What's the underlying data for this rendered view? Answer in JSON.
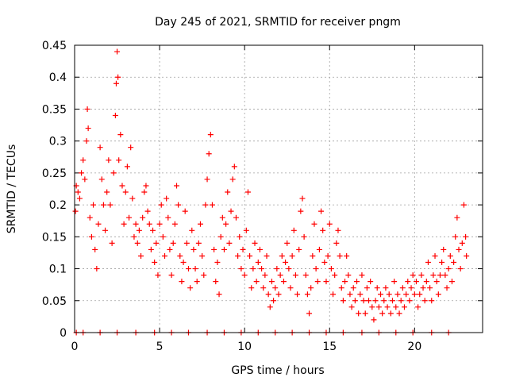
{
  "chart_data": {
    "type": "scatter",
    "title": "Day 245 of 2021, SRMTID for receiver pngm",
    "xlabel": "GPS time / hours",
    "ylabel": "SRMTID / TECUs",
    "xlim": [
      0,
      24
    ],
    "ylim": [
      0,
      0.45
    ],
    "x_ticks": [
      0,
      5,
      10,
      15,
      20
    ],
    "x_tick_labels": [
      "0",
      "5",
      "10",
      "15",
      "20"
    ],
    "y_ticks": [
      0,
      0.05,
      0.1,
      0.15,
      0.2,
      0.25,
      0.3,
      0.35,
      0.4,
      0.45
    ],
    "y_tick_labels": [
      "0",
      "0.05",
      "0.1",
      "0.15",
      "0.2",
      "0.25",
      "0.3",
      "0.35",
      "0.4",
      "0.45"
    ],
    "grid": true,
    "marker": "+",
    "color": "#ff0000",
    "series": [
      {
        "name": "SRMTID",
        "points": [
          [
            0.05,
            0.19
          ],
          [
            0.1,
            0.23
          ],
          [
            0.2,
            0.22
          ],
          [
            0.3,
            0.21
          ],
          [
            0.4,
            0.25
          ],
          [
            0.5,
            0.27
          ],
          [
            0.6,
            0.24
          ],
          [
            0.7,
            0.3
          ],
          [
            0.75,
            0.35
          ],
          [
            0.8,
            0.32
          ],
          [
            0.9,
            0.18
          ],
          [
            1.0,
            0.15
          ],
          [
            1.1,
            0.2
          ],
          [
            1.2,
            0.13
          ],
          [
            1.3,
            0.1
          ],
          [
            1.4,
            0.17
          ],
          [
            1.5,
            0.29
          ],
          [
            1.6,
            0.24
          ],
          [
            1.7,
            0.2
          ],
          [
            1.8,
            0.16
          ],
          [
            1.9,
            0.22
          ],
          [
            2.0,
            0.27
          ],
          [
            2.1,
            0.2
          ],
          [
            2.2,
            0.14
          ],
          [
            2.3,
            0.25
          ],
          [
            2.4,
            0.34
          ],
          [
            2.45,
            0.39
          ],
          [
            2.5,
            0.44
          ],
          [
            2.55,
            0.4
          ],
          [
            2.6,
            0.27
          ],
          [
            2.7,
            0.31
          ],
          [
            2.8,
            0.23
          ],
          [
            2.9,
            0.17
          ],
          [
            3.0,
            0.22
          ],
          [
            3.1,
            0.26
          ],
          [
            3.2,
            0.18
          ],
          [
            3.3,
            0.29
          ],
          [
            3.4,
            0.21
          ],
          [
            3.5,
            0.15
          ],
          [
            3.6,
            0.17
          ],
          [
            3.7,
            0.14
          ],
          [
            3.8,
            0.16
          ],
          [
            3.9,
            0.12
          ],
          [
            4.0,
            0.18
          ],
          [
            4.1,
            0.22
          ],
          [
            4.2,
            0.23
          ],
          [
            4.3,
            0.19
          ],
          [
            4.4,
            0.17
          ],
          [
            4.5,
            0.13
          ],
          [
            4.6,
            0.16
          ],
          [
            4.7,
            0.11
          ],
          [
            4.8,
            0.14
          ],
          [
            4.9,
            0.09
          ],
          [
            5.0,
            0.17
          ],
          [
            5.1,
            0.2
          ],
          [
            5.2,
            0.15
          ],
          [
            5.3,
            0.12
          ],
          [
            5.4,
            0.21
          ],
          [
            5.5,
            0.18
          ],
          [
            5.6,
            0.13
          ],
          [
            5.7,
            0.09
          ],
          [
            5.8,
            0.14
          ],
          [
            5.9,
            0.17
          ],
          [
            6.0,
            0.23
          ],
          [
            6.1,
            0.2
          ],
          [
            6.2,
            0.12
          ],
          [
            6.3,
            0.08
          ],
          [
            6.4,
            0.11
          ],
          [
            6.5,
            0.19
          ],
          [
            6.6,
            0.14
          ],
          [
            6.7,
            0.1
          ],
          [
            6.8,
            0.07
          ],
          [
            6.9,
            0.16
          ],
          [
            7.0,
            0.13
          ],
          [
            7.1,
            0.1
          ],
          [
            7.2,
            0.08
          ],
          [
            7.3,
            0.14
          ],
          [
            7.4,
            0.17
          ],
          [
            7.5,
            0.12
          ],
          [
            7.6,
            0.09
          ],
          [
            7.7,
            0.2
          ],
          [
            7.8,
            0.24
          ],
          [
            7.9,
            0.28
          ],
          [
            8.0,
            0.31
          ],
          [
            8.1,
            0.2
          ],
          [
            8.2,
            0.13
          ],
          [
            8.3,
            0.08
          ],
          [
            8.4,
            0.11
          ],
          [
            8.5,
            0.06
          ],
          [
            8.6,
            0.15
          ],
          [
            8.7,
            0.18
          ],
          [
            8.8,
            0.13
          ],
          [
            8.9,
            0.17
          ],
          [
            9.0,
            0.22
          ],
          [
            9.1,
            0.14
          ],
          [
            9.2,
            0.19
          ],
          [
            9.3,
            0.24
          ],
          [
            9.4,
            0.26
          ],
          [
            9.5,
            0.18
          ],
          [
            9.6,
            0.12
          ],
          [
            9.7,
            0.15
          ],
          [
            9.8,
            0.1
          ],
          [
            9.9,
            0.13
          ],
          [
            10.0,
            0.09
          ],
          [
            10.1,
            0.16
          ],
          [
            10.2,
            0.22
          ],
          [
            10.3,
            0.12
          ],
          [
            10.4,
            0.07
          ],
          [
            10.5,
            0.1
          ],
          [
            10.6,
            0.14
          ],
          [
            10.7,
            0.08
          ],
          [
            10.8,
            0.11
          ],
          [
            10.9,
            0.13
          ],
          [
            11.0,
            0.1
          ],
          [
            11.1,
            0.07
          ],
          [
            11.2,
            0.09
          ],
          [
            11.3,
            0.12
          ],
          [
            11.4,
            0.06
          ],
          [
            11.5,
            0.04
          ],
          [
            11.6,
            0.08
          ],
          [
            11.7,
            0.05
          ],
          [
            11.8,
            0.07
          ],
          [
            11.9,
            0.1
          ],
          [
            12.0,
            0.06
          ],
          [
            12.1,
            0.09
          ],
          [
            12.2,
            0.12
          ],
          [
            12.3,
            0.08
          ],
          [
            12.4,
            0.11
          ],
          [
            12.5,
            0.14
          ],
          [
            12.6,
            0.1
          ],
          [
            12.7,
            0.07
          ],
          [
            12.8,
            0.12
          ],
          [
            12.9,
            0.16
          ],
          [
            13.0,
            0.09
          ],
          [
            13.1,
            0.06
          ],
          [
            13.2,
            0.13
          ],
          [
            13.3,
            0.19
          ],
          [
            13.4,
            0.21
          ],
          [
            13.5,
            0.15
          ],
          [
            13.6,
            0.09
          ],
          [
            13.7,
            0.06
          ],
          [
            13.8,
            0.03
          ],
          [
            13.9,
            0.07
          ],
          [
            14.0,
            0.12
          ],
          [
            14.1,
            0.17
          ],
          [
            14.2,
            0.1
          ],
          [
            14.3,
            0.08
          ],
          [
            14.4,
            0.13
          ],
          [
            14.5,
            0.19
          ],
          [
            14.6,
            0.16
          ],
          [
            14.7,
            0.11
          ],
          [
            14.8,
            0.08
          ],
          [
            14.9,
            0.12
          ],
          [
            15.0,
            0.17
          ],
          [
            15.1,
            0.1
          ],
          [
            15.2,
            0.06
          ],
          [
            15.3,
            0.09
          ],
          [
            15.4,
            0.14
          ],
          [
            15.5,
            0.16
          ],
          [
            15.6,
            0.12
          ],
          [
            15.7,
            0.07
          ],
          [
            15.8,
            0.05
          ],
          [
            15.9,
            0.08
          ],
          [
            16.0,
            0.12
          ],
          [
            16.1,
            0.09
          ],
          [
            16.2,
            0.06
          ],
          [
            16.3,
            0.04
          ],
          [
            16.4,
            0.07
          ],
          [
            16.5,
            0.05
          ],
          [
            16.6,
            0.08
          ],
          [
            16.7,
            0.03
          ],
          [
            16.8,
            0.06
          ],
          [
            16.9,
            0.09
          ],
          [
            17.0,
            0.05
          ],
          [
            17.1,
            0.03
          ],
          [
            17.2,
            0.07
          ],
          [
            17.3,
            0.05
          ],
          [
            17.4,
            0.08
          ],
          [
            17.5,
            0.04
          ],
          [
            17.6,
            0.02
          ],
          [
            17.7,
            0.05
          ],
          [
            17.8,
            0.07
          ],
          [
            17.9,
            0.04
          ],
          [
            18.0,
            0.06
          ],
          [
            18.1,
            0.03
          ],
          [
            18.2,
            0.05
          ],
          [
            18.3,
            0.07
          ],
          [
            18.4,
            0.04
          ],
          [
            18.5,
            0.06
          ],
          [
            18.6,
            0.03
          ],
          [
            18.7,
            0.05
          ],
          [
            18.8,
            0.08
          ],
          [
            18.9,
            0.04
          ],
          [
            19.0,
            0.06
          ],
          [
            19.1,
            0.03
          ],
          [
            19.2,
            0.05
          ],
          [
            19.3,
            0.07
          ],
          [
            19.4,
            0.04
          ],
          [
            19.5,
            0.06
          ],
          [
            19.6,
            0.08
          ],
          [
            19.7,
            0.05
          ],
          [
            19.8,
            0.07
          ],
          [
            19.9,
            0.09
          ],
          [
            20.0,
            0.06
          ],
          [
            20.1,
            0.08
          ],
          [
            20.2,
            0.04
          ],
          [
            20.3,
            0.06
          ],
          [
            20.4,
            0.09
          ],
          [
            20.5,
            0.07
          ],
          [
            20.6,
            0.05
          ],
          [
            20.7,
            0.08
          ],
          [
            20.8,
            0.11
          ],
          [
            20.9,
            0.07
          ],
          [
            21.0,
            0.05
          ],
          [
            21.1,
            0.09
          ],
          [
            21.2,
            0.12
          ],
          [
            21.3,
            0.08
          ],
          [
            21.4,
            0.06
          ],
          [
            21.5,
            0.09
          ],
          [
            21.6,
            0.11
          ],
          [
            21.7,
            0.13
          ],
          [
            21.8,
            0.09
          ],
          [
            21.9,
            0.07
          ],
          [
            22.0,
            0.1
          ],
          [
            22.1,
            0.12
          ],
          [
            22.2,
            0.08
          ],
          [
            22.3,
            0.11
          ],
          [
            22.4,
            0.15
          ],
          [
            22.5,
            0.18
          ],
          [
            22.6,
            0.13
          ],
          [
            22.7,
            0.1
          ],
          [
            22.8,
            0.14
          ],
          [
            22.9,
            0.2
          ],
          [
            23.0,
            0.15
          ],
          [
            23.05,
            0.12
          ]
        ]
      },
      {
        "name": "zero-level markers",
        "points": [
          [
            0.1,
            0
          ],
          [
            0.5,
            0
          ],
          [
            1.5,
            0
          ],
          [
            2.5,
            0
          ],
          [
            3.6,
            0
          ],
          [
            4.7,
            0
          ],
          [
            5.7,
            0
          ],
          [
            6.7,
            0
          ],
          [
            7.8,
            0
          ],
          [
            8.8,
            0
          ],
          [
            9.8,
            0
          ],
          [
            10.8,
            0
          ],
          [
            11.8,
            0
          ],
          [
            12.8,
            0
          ],
          [
            13.8,
            0
          ],
          [
            14.8,
            0
          ],
          [
            15.8,
            0
          ],
          [
            16.9,
            0
          ],
          [
            17.9,
            0
          ],
          [
            18.9,
            0
          ],
          [
            19.9,
            0
          ],
          [
            21.0,
            0
          ],
          [
            22.0,
            0
          ]
        ]
      }
    ]
  }
}
